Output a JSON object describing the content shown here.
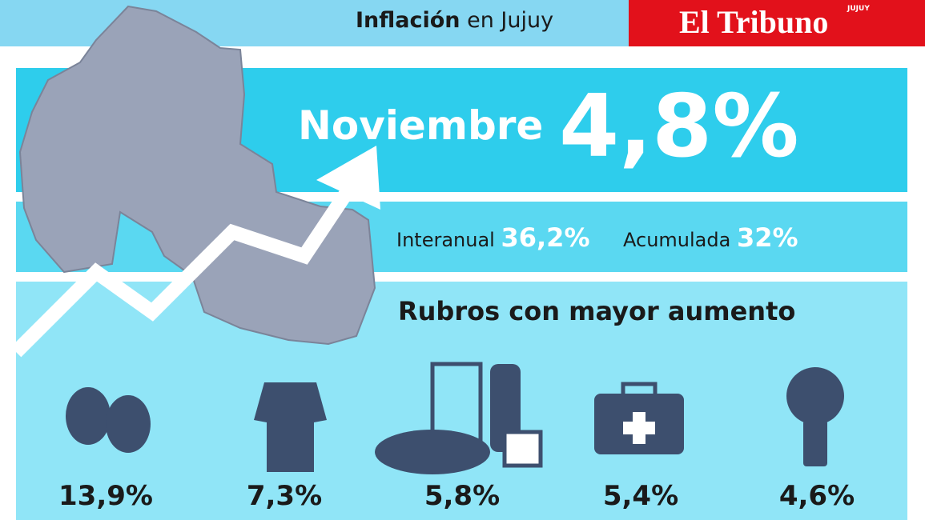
{
  "header": {
    "title_bold": "Inflación",
    "title_rest": "en Jujuy",
    "brand": "El Tribuno",
    "brand_tag": "JUJUY"
  },
  "monthly": {
    "month": "Noviembre",
    "value": "4,8%"
  },
  "annual": {
    "interanual_label": "Interanual",
    "interanual_value": "36,2%",
    "acumulada_label": "Acumulada",
    "acumulada_value": "32%"
  },
  "rubros": {
    "title": "Rubros con mayor aumento",
    "items": [
      "13,9%",
      "7,3%",
      "5,8%",
      "5,4%",
      "4,6%"
    ]
  }
}
